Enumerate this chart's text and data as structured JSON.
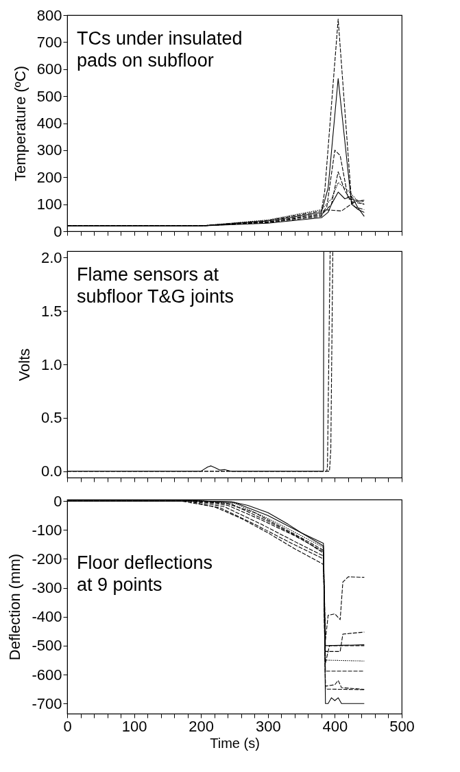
{
  "chart_data": [
    {
      "type": "line",
      "ylabel": "Temperature (ºC)",
      "annotations": [
        "TCs under insulated\npads on subfloor"
      ],
      "xlim": [
        0,
        500
      ],
      "ylim": [
        0,
        800
      ],
      "tick_labels": "y",
      "grid": false,
      "legend": false,
      "xticks": [
        0,
        {
          "value": 20,
          "label": null
        },
        {
          "value": 40,
          "label": null
        },
        {
          "value": 60,
          "label": null
        },
        {
          "value": 80,
          "label": null
        },
        100,
        {
          "value": 120,
          "label": null
        },
        {
          "value": 140,
          "label": null
        },
        {
          "value": 160,
          "label": null
        },
        {
          "value": 180,
          "label": null
        },
        200,
        {
          "value": 220,
          "label": null
        },
        {
          "value": 240,
          "label": null
        },
        {
          "value": 260,
          "label": null
        },
        {
          "value": 280,
          "label": null
        },
        300,
        {
          "value": 320,
          "label": null
        },
        {
          "value": 340,
          "label": null
        },
        {
          "value": 360,
          "label": null
        },
        {
          "value": 380,
          "label": null
        },
        400,
        {
          "value": 420,
          "label": null
        },
        {
          "value": 440,
          "label": null
        },
        {
          "value": 460,
          "label": null
        },
        {
          "value": 480,
          "label": null
        },
        500
      ],
      "yticks": [
        0,
        100,
        200,
        300,
        400,
        500,
        600,
        700,
        800
      ],
      "series": [
        {
          "color": "#000000",
          "line_style": "dashed",
          "x": [
            0,
            200,
            300,
            380,
            385,
            405,
            425,
            444
          ],
          "values": [
            20,
            20,
            40,
            75,
            150,
            785,
            110,
            100
          ]
        },
        {
          "color": "#000000",
          "line_style": "solid",
          "x": [
            0,
            200,
            300,
            380,
            390,
            405,
            425,
            435,
            444
          ],
          "values": [
            20,
            20,
            38,
            70,
            160,
            565,
            100,
            80,
            70
          ]
        },
        {
          "color": "#000000",
          "line_style": "dashed",
          "x": [
            0,
            200,
            300,
            380,
            388,
            400,
            408,
            420,
            444
          ],
          "values": [
            20,
            20,
            35,
            65,
            90,
            300,
            280,
            120,
            110
          ]
        },
        {
          "color": "#000000",
          "line_style": "dashed",
          "x": [
            0,
            200,
            300,
            380,
            395,
            405,
            415,
            430,
            444
          ],
          "values": [
            20,
            20,
            34,
            60,
            100,
            220,
            150,
            90,
            80
          ]
        },
        {
          "color": "#000000",
          "line_style": "dotted",
          "x": [
            0,
            200,
            300,
            380,
            395,
            405,
            420,
            435,
            444
          ],
          "values": [
            20,
            20,
            42,
            80,
            120,
            180,
            150,
            110,
            100
          ]
        },
        {
          "color": "#000000",
          "line_style": "solid",
          "x": [
            0,
            200,
            300,
            380,
            390,
            395,
            405,
            415,
            425,
            435,
            444
          ],
          "values": [
            20,
            20,
            30,
            50,
            70,
            100,
            145,
            120,
            130,
            85,
            55
          ]
        },
        {
          "color": "#000000",
          "line_style": "dashed",
          "x": [
            0,
            200,
            300,
            380,
            385,
            410,
            430,
            444
          ],
          "values": [
            20,
            20,
            32,
            55,
            80,
            75,
            110,
            115
          ]
        }
      ]
    },
    {
      "type": "line",
      "ylabel": "Volts",
      "annotations": [
        "Flame sensors at\nsubfloor T&G joints"
      ],
      "xlim": [
        0,
        500
      ],
      "ylim": [
        -0.06,
        2.06
      ],
      "tick_labels": "y",
      "grid": false,
      "legend": false,
      "xticks": [
        0,
        {
          "value": 20,
          "label": null
        },
        {
          "value": 40,
          "label": null
        },
        {
          "value": 60,
          "label": null
        },
        {
          "value": 80,
          "label": null
        },
        100,
        {
          "value": 120,
          "label": null
        },
        {
          "value": 140,
          "label": null
        },
        {
          "value": 160,
          "label": null
        },
        {
          "value": 180,
          "label": null
        },
        200,
        {
          "value": 220,
          "label": null
        },
        {
          "value": 240,
          "label": null
        },
        {
          "value": 260,
          "label": null
        },
        {
          "value": 280,
          "label": null
        },
        300,
        {
          "value": 320,
          "label": null
        },
        {
          "value": 340,
          "label": null
        },
        {
          "value": 360,
          "label": null
        },
        {
          "value": 380,
          "label": null
        },
        400,
        {
          "value": 420,
          "label": null
        },
        {
          "value": 440,
          "label": null
        },
        {
          "value": 460,
          "label": null
        },
        {
          "value": 480,
          "label": null
        },
        500
      ],
      "yticks": [
        {
          "value": 0,
          "label": "0.0"
        },
        0.5,
        {
          "value": 1,
          "label": "1.0"
        },
        1.5,
        {
          "value": 2,
          "label": "2.0"
        }
      ],
      "series": [
        {
          "color": "#000000",
          "line_style": "solid",
          "x": [
            0,
            200,
            210,
            215,
            222,
            228,
            235,
            245,
            383,
            383.5
          ],
          "values": [
            0,
            0,
            0.04,
            0.05,
            0.03,
            0.01,
            0.015,
            0,
            0,
            2.06
          ]
        },
        {
          "color": "#000000",
          "line_style": "dotted",
          "x": [
            0,
            388,
            389,
            393
          ],
          "values": [
            0,
            0,
            0.05,
            2.06
          ]
        },
        {
          "color": "#000000",
          "line_style": "dotted",
          "x": [
            0,
            392,
            394,
            397
          ],
          "values": [
            0,
            0,
            0.2,
            2.06
          ]
        }
      ]
    },
    {
      "type": "line",
      "ylabel": "Deflection (mm)",
      "xlabel": "Time (s)",
      "annotations": [
        "Floor deflections\nat 9 points"
      ],
      "xlim": [
        0,
        500
      ],
      "ylim": [
        -735,
        5
      ],
      "grid": false,
      "legend": false,
      "xticks": [
        0,
        {
          "value": 20,
          "label": null
        },
        {
          "value": 40,
          "label": null
        },
        {
          "value": 60,
          "label": null
        },
        {
          "value": 80,
          "label": null
        },
        100,
        {
          "value": 120,
          "label": null
        },
        {
          "value": 140,
          "label": null
        },
        {
          "value": 160,
          "label": null
        },
        {
          "value": 180,
          "label": null
        },
        200,
        {
          "value": 220,
          "label": null
        },
        {
          "value": 240,
          "label": null
        },
        {
          "value": 260,
          "label": null
        },
        {
          "value": 280,
          "label": null
        },
        300,
        {
          "value": 320,
          "label": null
        },
        {
          "value": 340,
          "label": null
        },
        {
          "value": 360,
          "label": null
        },
        {
          "value": 380,
          "label": null
        },
        400,
        {
          "value": 420,
          "label": null
        },
        {
          "value": 440,
          "label": null
        },
        {
          "value": 460,
          "label": null
        },
        {
          "value": 480,
          "label": null
        },
        500
      ],
      "yticks": [
        0,
        -100,
        -200,
        -300,
        -400,
        -500,
        -600,
        -700
      ],
      "series": [
        {
          "color": "#000000",
          "line_style": "solid",
          "x": [
            0,
            190,
            245,
            270,
            300,
            330,
            350,
            383,
            386,
            390,
            395,
            400,
            405,
            410,
            444
          ],
          "values": [
            0,
            0,
            -2,
            -15,
            -40,
            -80,
            -110,
            -146,
            -700,
            -700,
            -680,
            -690,
            -680,
            -700,
            -700
          ]
        },
        {
          "color": "#000000",
          "line_style": "dashed",
          "x": [
            0,
            170,
            220,
            260,
            300,
            340,
            380,
            383,
            386,
            408,
            412,
            444
          ],
          "values": [
            0,
            0,
            -20,
            -60,
            -110,
            -165,
            -215,
            -220,
            -520,
            -520,
            -460,
            -453
          ]
        },
        {
          "color": "#000000",
          "line_style": "dotted",
          "x": [
            0,
            195,
            240,
            280,
            320,
            360,
            383,
            386,
            390,
            400,
            408,
            412,
            420,
            444
          ],
          "values": [
            0,
            0,
            -10,
            -40,
            -90,
            -140,
            -170,
            -480,
            -395,
            -390,
            -410,
            -280,
            -262,
            -264
          ]
        },
        {
          "color": "#000000",
          "line_style": "dashed",
          "x": [
            0,
            190,
            240,
            290,
            340,
            383,
            386,
            392,
            444
          ],
          "values": [
            0,
            0,
            -15,
            -65,
            -120,
            -175,
            -560,
            -500,
            -500
          ]
        },
        {
          "color": "#000000",
          "line_style": "dotted",
          "x": [
            0,
            200,
            250,
            300,
            350,
            383,
            386,
            444
          ],
          "values": [
            0,
            0,
            -8,
            -60,
            -120,
            -160,
            -550,
            -553
          ]
        },
        {
          "color": "#000000",
          "line_style": "dashed",
          "x": [
            0,
            185,
            235,
            290,
            340,
            383,
            386,
            444
          ],
          "values": [
            0,
            0,
            -20,
            -80,
            -140,
            -190,
            -588,
            -588
          ]
        },
        {
          "color": "#000000",
          "line_style": "dashed",
          "x": [
            0,
            195,
            245,
            300,
            350,
            383,
            386,
            400,
            405,
            410,
            444
          ],
          "values": [
            0,
            0,
            -10,
            -70,
            -130,
            -180,
            -640,
            -635,
            -620,
            -645,
            -651
          ]
        },
        {
          "color": "#000000",
          "line_style": "dashed",
          "x": [
            0,
            180,
            230,
            280,
            330,
            383,
            386,
            444
          ],
          "values": [
            0,
            0,
            -25,
            -80,
            -140,
            -200,
            -650,
            -652
          ]
        },
        {
          "color": "#000000",
          "line_style": "solid",
          "x": [
            0,
            200,
            250,
            300,
            350,
            383,
            386,
            444
          ],
          "values": [
            0,
            0,
            -5,
            -50,
            -110,
            -155,
            -500,
            -497
          ]
        }
      ]
    }
  ]
}
